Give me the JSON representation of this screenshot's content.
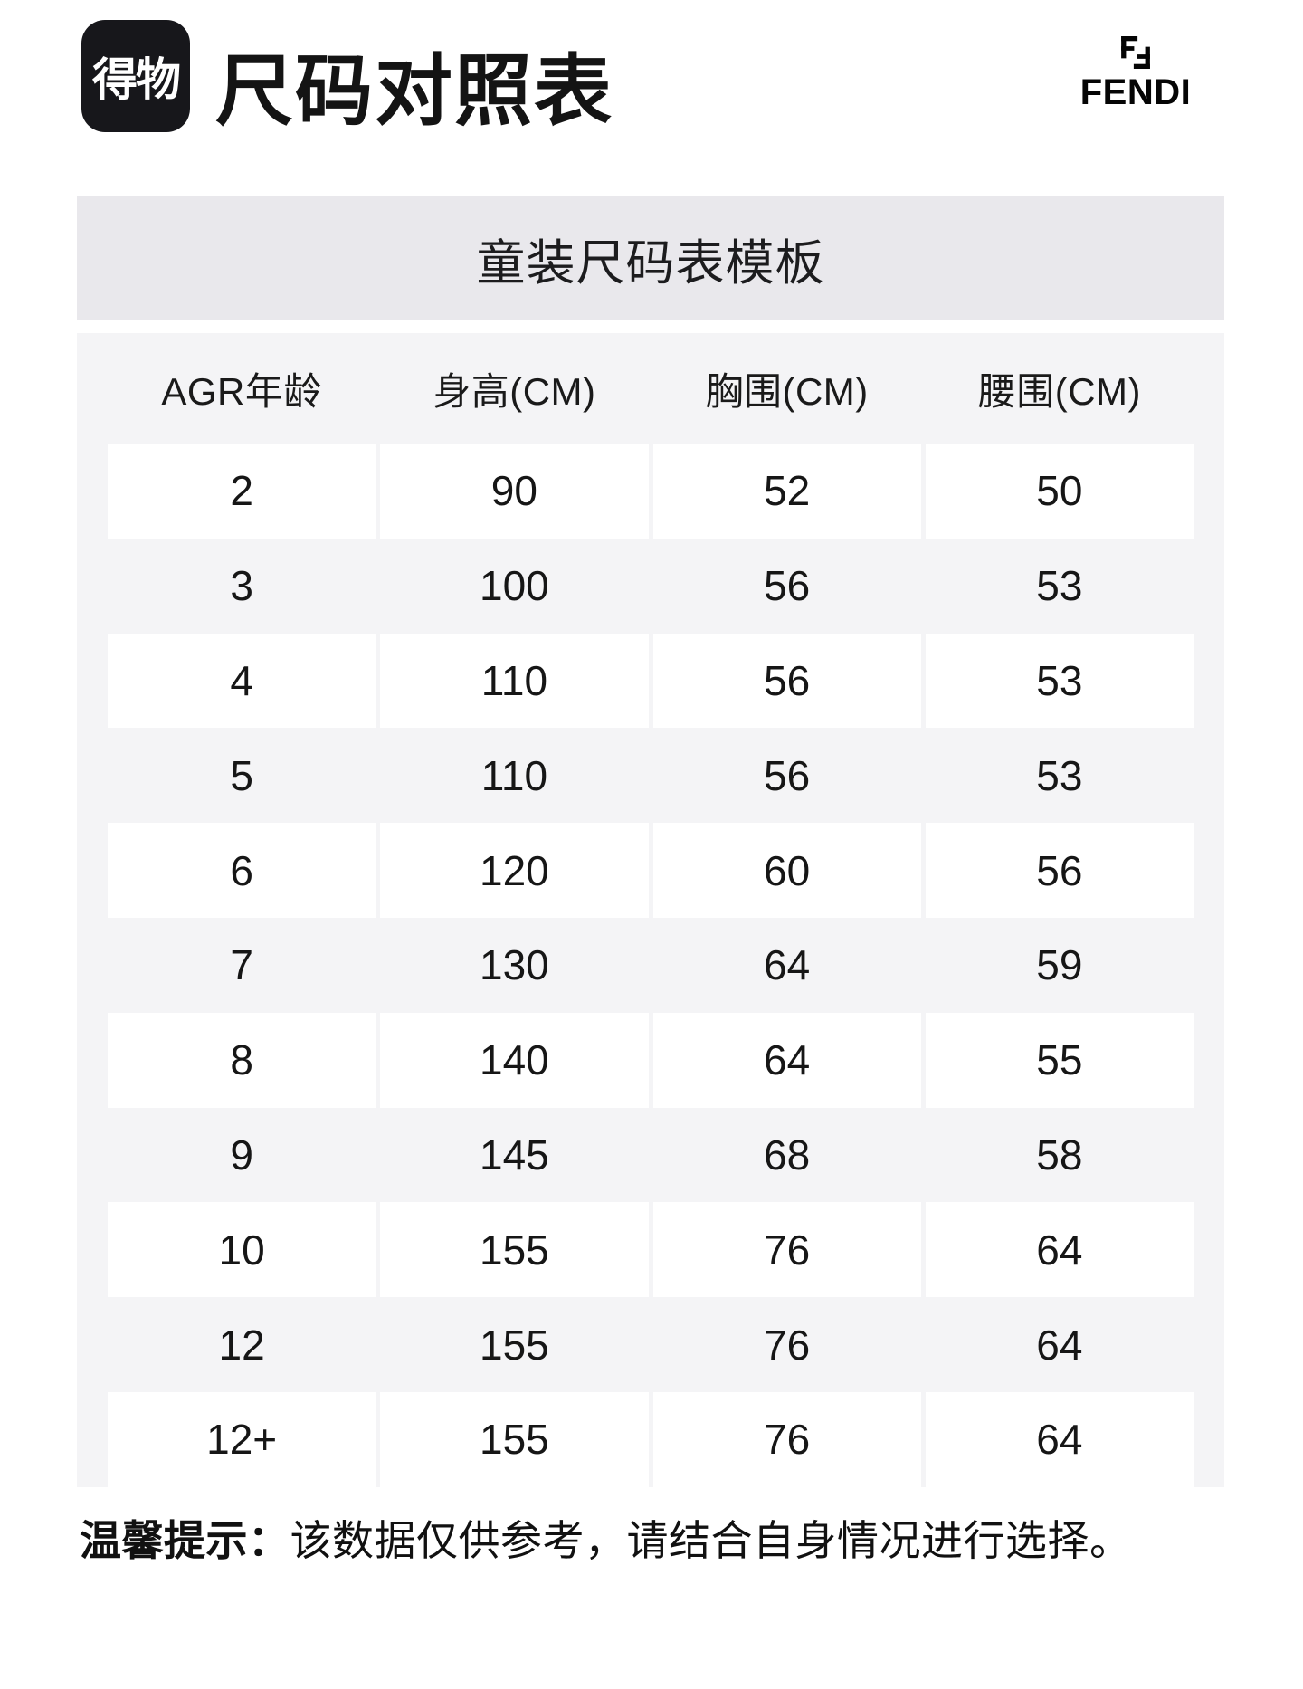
{
  "header": {
    "logo_text": "得物",
    "page_title": "尺码对照表",
    "brand_name": "FENDI"
  },
  "banner": {
    "title": "童装尺码表模板"
  },
  "table": {
    "columns": [
      "AGR年龄",
      "身高(CM)",
      "胸围(CM)",
      "腰围(CM)"
    ],
    "rows": [
      [
        "2",
        "90",
        "52",
        "50"
      ],
      [
        "3",
        "100",
        "56",
        "53"
      ],
      [
        "4",
        "110",
        "56",
        "53"
      ],
      [
        "5",
        "110",
        "56",
        "53"
      ],
      [
        "6",
        "120",
        "60",
        "56"
      ],
      [
        "7",
        "130",
        "64",
        "59"
      ],
      [
        "8",
        "140",
        "64",
        "55"
      ],
      [
        "9",
        "145",
        "68",
        "58"
      ],
      [
        "10",
        "155",
        "76",
        "64"
      ],
      [
        "12",
        "155",
        "76",
        "64"
      ],
      [
        "12+",
        "155",
        "76",
        "64"
      ]
    ]
  },
  "footer": {
    "notice_label": "温馨提示：",
    "notice_text": "该数据仅供参考，请结合自身情况进行选择。"
  },
  "colors": {
    "logo_bg": "#17171b",
    "banner_bg": "#e9e8ec",
    "panel_bg": "#f4f4f6",
    "cell_bg": "#ffffff",
    "text": "#1a1a1a"
  }
}
